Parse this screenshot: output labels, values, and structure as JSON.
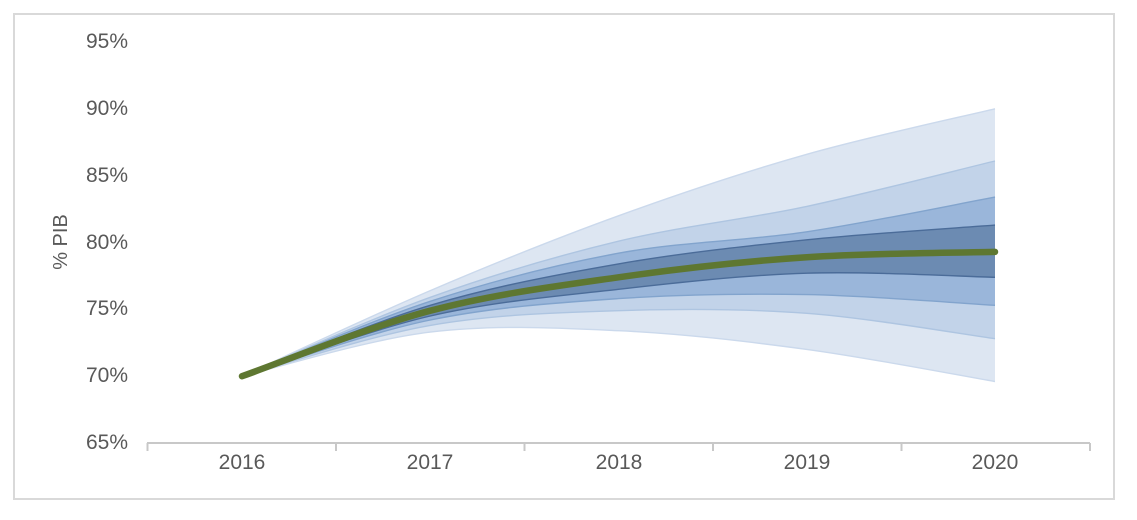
{
  "chart_data": {
    "type": "area",
    "subtype": "fan-chart",
    "ylabel": "% PIB",
    "x": [
      2016,
      2017,
      2018,
      2019,
      2020
    ],
    "x_tick_labels": [
      "2016",
      "2017",
      "2018",
      "2019",
      "2020"
    ],
    "y_tick_labels": [
      "95%",
      "90%",
      "85%",
      "80%",
      "75%",
      "70%",
      "65%"
    ],
    "ylim": [
      65,
      95
    ],
    "y_tick_step": 5,
    "grid": false,
    "legend": false,
    "median": {
      "name": "median-line",
      "values": [
        70.0,
        74.9,
        77.4,
        78.9,
        79.3
      ],
      "color": "#5e7731"
    },
    "bands": [
      {
        "name": "confidence-band-outer",
        "fill": "#dde6f2",
        "edge": "#cbd9ec",
        "upper": [
          70.0,
          76.4,
          82.0,
          86.6,
          90.0
        ],
        "lower": [
          70.0,
          73.3,
          73.4,
          72.0,
          69.6
        ]
      },
      {
        "name": "confidence-band-wide",
        "fill": "#c2d3e9",
        "edge": "#aec5e1",
        "upper": [
          70.0,
          75.9,
          80.1,
          82.7,
          86.1
        ],
        "lower": [
          70.0,
          73.8,
          74.9,
          74.7,
          72.8
        ]
      },
      {
        "name": "confidence-band-mid",
        "fill": "#9ab6da",
        "edge": "#82a4cd",
        "upper": [
          70.0,
          75.6,
          79.2,
          80.8,
          83.4
        ],
        "lower": [
          70.0,
          74.2,
          75.8,
          76.1,
          75.3
        ]
      },
      {
        "name": "confidence-band-inner",
        "fill": "#6c8bb2",
        "edge": "#4b6c99",
        "upper": [
          70.0,
          75.3,
          78.4,
          80.2,
          81.3
        ],
        "lower": [
          70.0,
          74.5,
          76.5,
          77.7,
          77.4
        ]
      }
    ],
    "axis_color": "#c8c8c8",
    "text_color": "#595959",
    "frame_color": "#d9d9d9"
  }
}
